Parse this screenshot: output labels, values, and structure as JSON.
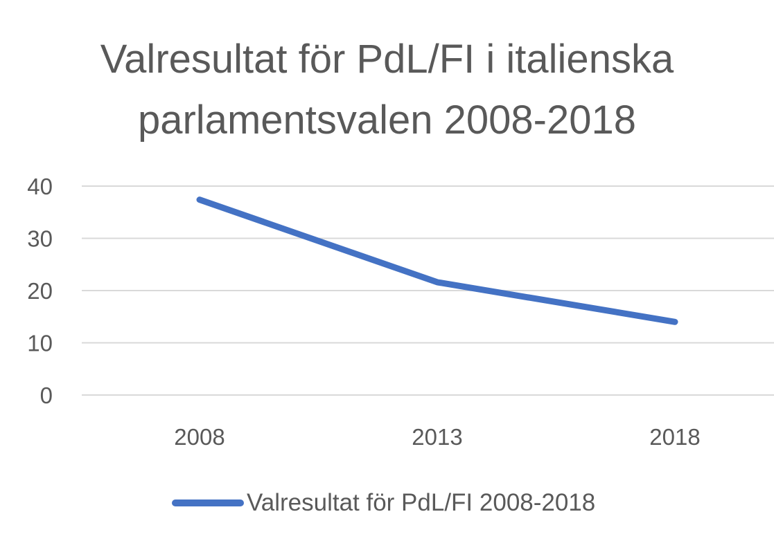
{
  "chart_data": {
    "type": "line",
    "title_lines": [
      "Valresultat för PdL/FI i italienska",
      "parlamentsvalen 2008-2018"
    ],
    "categories": [
      "2008",
      "2013",
      "2018"
    ],
    "series": [
      {
        "name": "Valresultat för PdL/FI 2008-2018",
        "values": [
          37.4,
          21.6,
          14.0
        ],
        "color": "#4472c4"
      }
    ],
    "yticks": [
      "0",
      "10",
      "20",
      "30",
      "40"
    ],
    "ylim": [
      0,
      40
    ],
    "grid": true,
    "legend_position": "bottom",
    "gridline_color": "#d9d9d9",
    "text_color": "#595959"
  }
}
